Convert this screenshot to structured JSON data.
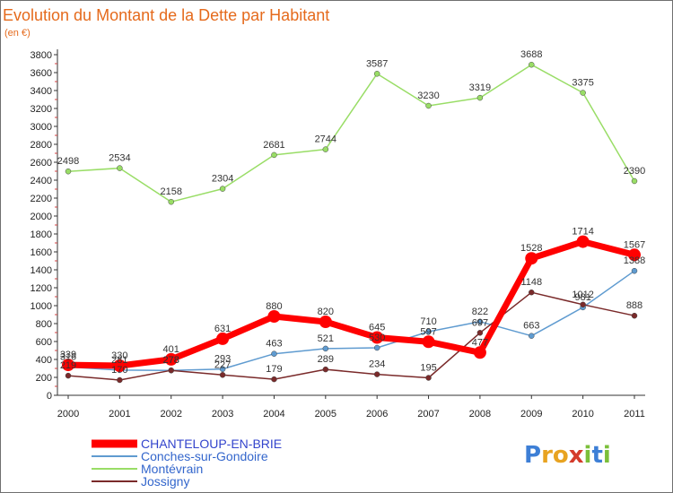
{
  "chart_data": {
    "type": "line",
    "title": "Evolution du Montant de la Dette par Habitant",
    "subtitle": "(en €)",
    "x": [
      "2000",
      "2001",
      "2002",
      "2003",
      "2004",
      "2005",
      "2006",
      "2007",
      "2008",
      "2009",
      "2010",
      "2011"
    ],
    "ylim": [
      0,
      3800
    ],
    "yticks": [
      0,
      200,
      400,
      600,
      800,
      1000,
      1200,
      1400,
      1600,
      1800,
      2000,
      2200,
      2400,
      2600,
      2800,
      3000,
      3200,
      3400,
      3600,
      3800
    ],
    "grid": false,
    "legend_position": "bottom-left",
    "series": [
      {
        "name": "CHANTELOUP-EN-BRIE",
        "color": "#ff0000",
        "width": 7,
        "marker": 7,
        "values": [
          339,
          330,
          401,
          631,
          880,
          820,
          645,
          597,
          477,
          1528,
          1714,
          1567
        ],
        "labels": [
          "339",
          "330",
          "401",
          "631",
          "880",
          "820",
          "645",
          "597",
          "477",
          "1528",
          "1714",
          "1567"
        ],
        "text_color": "#3344cc"
      },
      {
        "name": "Conches-sur-Gondoire",
        "color": "#5f9bd0",
        "width": 1.5,
        "marker": 3,
        "values": [
          316,
          281,
          278,
          293,
          463,
          521,
          530,
          710,
          822,
          663,
          981,
          1388
        ],
        "labels": [
          "316",
          "281",
          "278",
          "293",
          "463",
          "521",
          "530",
          "710",
          "822",
          "663",
          "981",
          "1388"
        ],
        "text_color": "#3366cc"
      },
      {
        "name": "Montévrain",
        "color": "#99dd66",
        "width": 1.5,
        "marker": 3,
        "values": [
          2498,
          2534,
          2158,
          2304,
          2681,
          2744,
          3587,
          3230,
          3319,
          3688,
          3375,
          2390
        ],
        "labels": [
          "2498",
          "2534",
          "2158",
          "2304",
          "2681",
          "2744",
          "3587",
          "3230",
          "3319",
          "3688",
          "3375",
          "2390"
        ],
        "text_color": "#3366cc"
      },
      {
        "name": "Jossigny",
        "color": "#7a2a2a",
        "width": 1.5,
        "marker": 3,
        "values": [
          219,
          170,
          278,
          227,
          179,
          289,
          234,
          195,
          697,
          1148,
          1012,
          888
        ],
        "labels": [
          "219",
          "170",
          "278",
          "227",
          "179",
          "289",
          "234",
          "195",
          "697",
          "1148",
          "1012",
          "888"
        ],
        "text_color": "#3366cc"
      }
    ]
  },
  "logo": {
    "text": "Proxiti",
    "letters": [
      "P",
      "r",
      "o",
      "x",
      "i",
      "t",
      "i"
    ],
    "colors": [
      "#3d7fd6",
      "#e8a321",
      "#e8a321",
      "#d43b2b",
      "#7bbf3a",
      "#3d7fd6",
      "#7bbf3a"
    ]
  }
}
